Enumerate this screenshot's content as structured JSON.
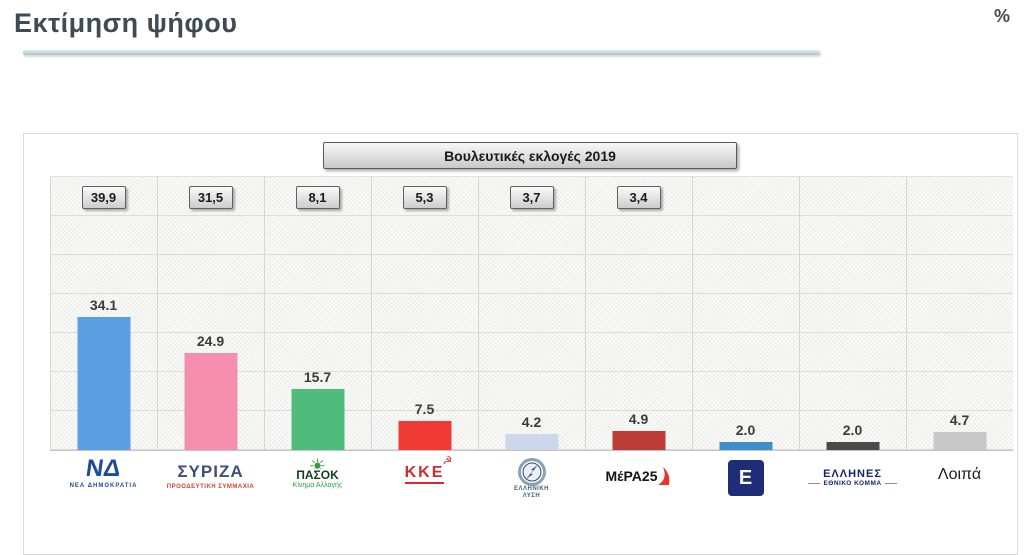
{
  "page": {
    "title": "Εκτίμηση ψήφου",
    "unit_label": "%"
  },
  "chart_header": {
    "label": "Βουλευτικές εκλογές 2019"
  },
  "chart_data": {
    "type": "bar",
    "title": "Εκτίμηση ψήφου",
    "unit": "%",
    "categories": [
      "ΝΕΑ ΔΗΜΟΚΡΑΤΙΑ",
      "ΣΥΡΙΖΑ ΠΡΟΟΔΕΥΤΙΚΗ ΣΥΜΜΑΧΙΑ",
      "ΠΑΣΟΚ Κίνημα Αλλαγής",
      "ΚΚΕ",
      "ΕΛΛΗΝΙΚΗ ΛΥΣΗ",
      "ΜέΡΑ25",
      "Ε (μπλε λογότυπο)",
      "ΕΛΛΗΝΕΣ ΕΘΝΙΚΟ ΚΟΜΜΑ",
      "Λοιπά"
    ],
    "series": [
      {
        "name": "Εκτίμηση ψήφου",
        "values": [
          34.1,
          24.9,
          15.7,
          7.5,
          4.2,
          4.9,
          2.0,
          2.0,
          4.7
        ],
        "labels": [
          "34.1",
          "24.9",
          "15.7",
          "7.5",
          "4.2",
          "4.9",
          "2.0",
          "2.0",
          "4.7"
        ]
      },
      {
        "name": "Βουλευτικές εκλογές 2019",
        "values": [
          39.9,
          31.5,
          8.1,
          5.3,
          3.7,
          3.4,
          null,
          null,
          null
        ],
        "labels": [
          "39,9",
          "31,5",
          "8,1",
          "5,3",
          "3,7",
          "3,4",
          null,
          null,
          null
        ]
      }
    ],
    "bar_colors": [
      "#5B9FE3",
      "#F48FB0",
      "#4FBC7C",
      "#EF3B33",
      "#CDD7EB",
      "#BE3C36",
      "#3E8ECC",
      "#4A4A4A",
      "#C8C8C8"
    ],
    "ylim": [
      0,
      70
    ],
    "grid": true,
    "legend": "none"
  },
  "logos": {
    "nd": {
      "mark": "ΝΔ",
      "caption": "ΝΕΑ ΔΗΜΟΚΡΑΤΙΑ"
    },
    "syriza": {
      "mark": "ΣΥΡΙΖΑ",
      "caption": "ΠΡΟΟΔΕΥΤΙΚΗ ΣΥΜΜΑΧΙΑ"
    },
    "pasok": {
      "sun": "☀",
      "mark": "ΠΑΣΟΚ",
      "caption": "Κίνημα Αλλαγής"
    },
    "kke": {
      "mark": "ΚΚΕ",
      "symbol": "☭"
    },
    "elliniki_lysi": {
      "line1": "ΕΛΛΗΝΙΚΗ",
      "line2": "ΛΥΣΗ"
    },
    "mera25": {
      "mark": "ΜέΡΑ25"
    },
    "blue_e": {
      "mark": "Ε"
    },
    "ellines": {
      "line1": "ΕΛΛΗΝΕΣ",
      "line2": "ΕΘΝΙΚΟ ΚΟΜΜΑ"
    },
    "loipa": {
      "label": "Λοιπά"
    }
  }
}
